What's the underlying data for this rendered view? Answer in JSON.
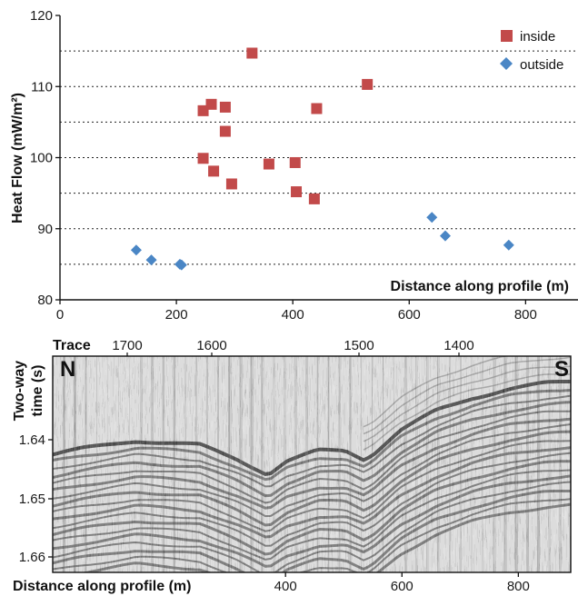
{
  "chart_data": [
    {
      "type": "scatter",
      "ylabel": "Heat Flow (mW/m²)",
      "xlabel": "Distance along profile (m)",
      "xlim": [
        0,
        890
      ],
      "ylim": [
        80,
        120
      ],
      "x_ticks": [
        "0",
        "200",
        "400",
        "600",
        "800"
      ],
      "y_ticks": [
        "80",
        "90",
        "100",
        "110",
        "120"
      ],
      "reference_lines_y": [
        85,
        95,
        105,
        115
      ],
      "grid": "dotted horizontal lines",
      "legend_position": "top-right",
      "series": [
        {
          "name": "inside",
          "marker": "square",
          "color": "#c24a4a",
          "points": [
            {
              "x": 330,
              "y": 114.7
            },
            {
              "x": 528,
              "y": 110.3
            },
            {
              "x": 260,
              "y": 107.5
            },
            {
              "x": 246,
              "y": 106.6
            },
            {
              "x": 284,
              "y": 107.1
            },
            {
              "x": 441,
              "y": 106.9
            },
            {
              "x": 284,
              "y": 103.7
            },
            {
              "x": 246,
              "y": 99.9
            },
            {
              "x": 264,
              "y": 98.1
            },
            {
              "x": 359,
              "y": 99.1
            },
            {
              "x": 404,
              "y": 99.3
            },
            {
              "x": 295,
              "y": 96.3
            },
            {
              "x": 406,
              "y": 95.2
            },
            {
              "x": 437,
              "y": 94.2
            }
          ]
        },
        {
          "name": "outside",
          "marker": "diamond",
          "color": "#4a86c5",
          "points": [
            {
              "x": 131,
              "y": 87.0
            },
            {
              "x": 157,
              "y": 85.6
            },
            {
              "x": 206,
              "y": 85.0
            },
            {
              "x": 209,
              "y": 84.9
            },
            {
              "x": 639,
              "y": 91.6
            },
            {
              "x": 662,
              "y": 89.0
            },
            {
              "x": 771,
              "y": 87.7
            }
          ]
        }
      ]
    },
    {
      "type": "heatmap",
      "description_kind": "seismic reflection profile",
      "top_axis_title": "Trace",
      "top_ticks": [
        "1700",
        "1600",
        "1500",
        "1400"
      ],
      "ylabel_line1": "Two-way",
      "ylabel_line2": "time (s)",
      "y_ticks": [
        "1.64",
        "1.65",
        "1.66"
      ],
      "xlabel": "Distance along profile (m)",
      "x_ticks": [
        "400",
        "600",
        "800"
      ],
      "xlim": [
        0,
        890
      ],
      "left_label": "N",
      "right_label": "S"
    }
  ]
}
